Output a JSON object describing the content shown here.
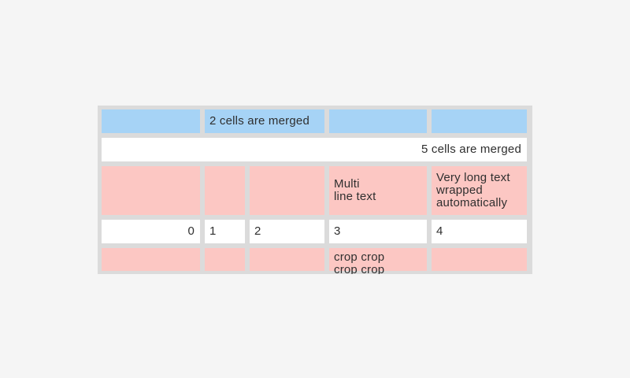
{
  "colors": {
    "page_background": "#f5f5f5",
    "table_grid": "#dbdbdb",
    "header_cell_blue": "#a6d3f6",
    "highlight_cell_pink": "#fcc7c3",
    "cell_white": "#ffffff",
    "cell_text": "#2f2f2f"
  },
  "table": {
    "cells": {
      "r1c2_merged": "2 cells are merged",
      "r2c1_merged": "5 cells are merged",
      "r3c4": "Multi\nline text",
      "r3c5": "Very long text wrapped automatically",
      "r4c1": "0",
      "r4c2": "1",
      "r4c3": "2",
      "r4c4": "3",
      "r4c5": "4",
      "r5c4": "crop crop crop crop"
    }
  }
}
